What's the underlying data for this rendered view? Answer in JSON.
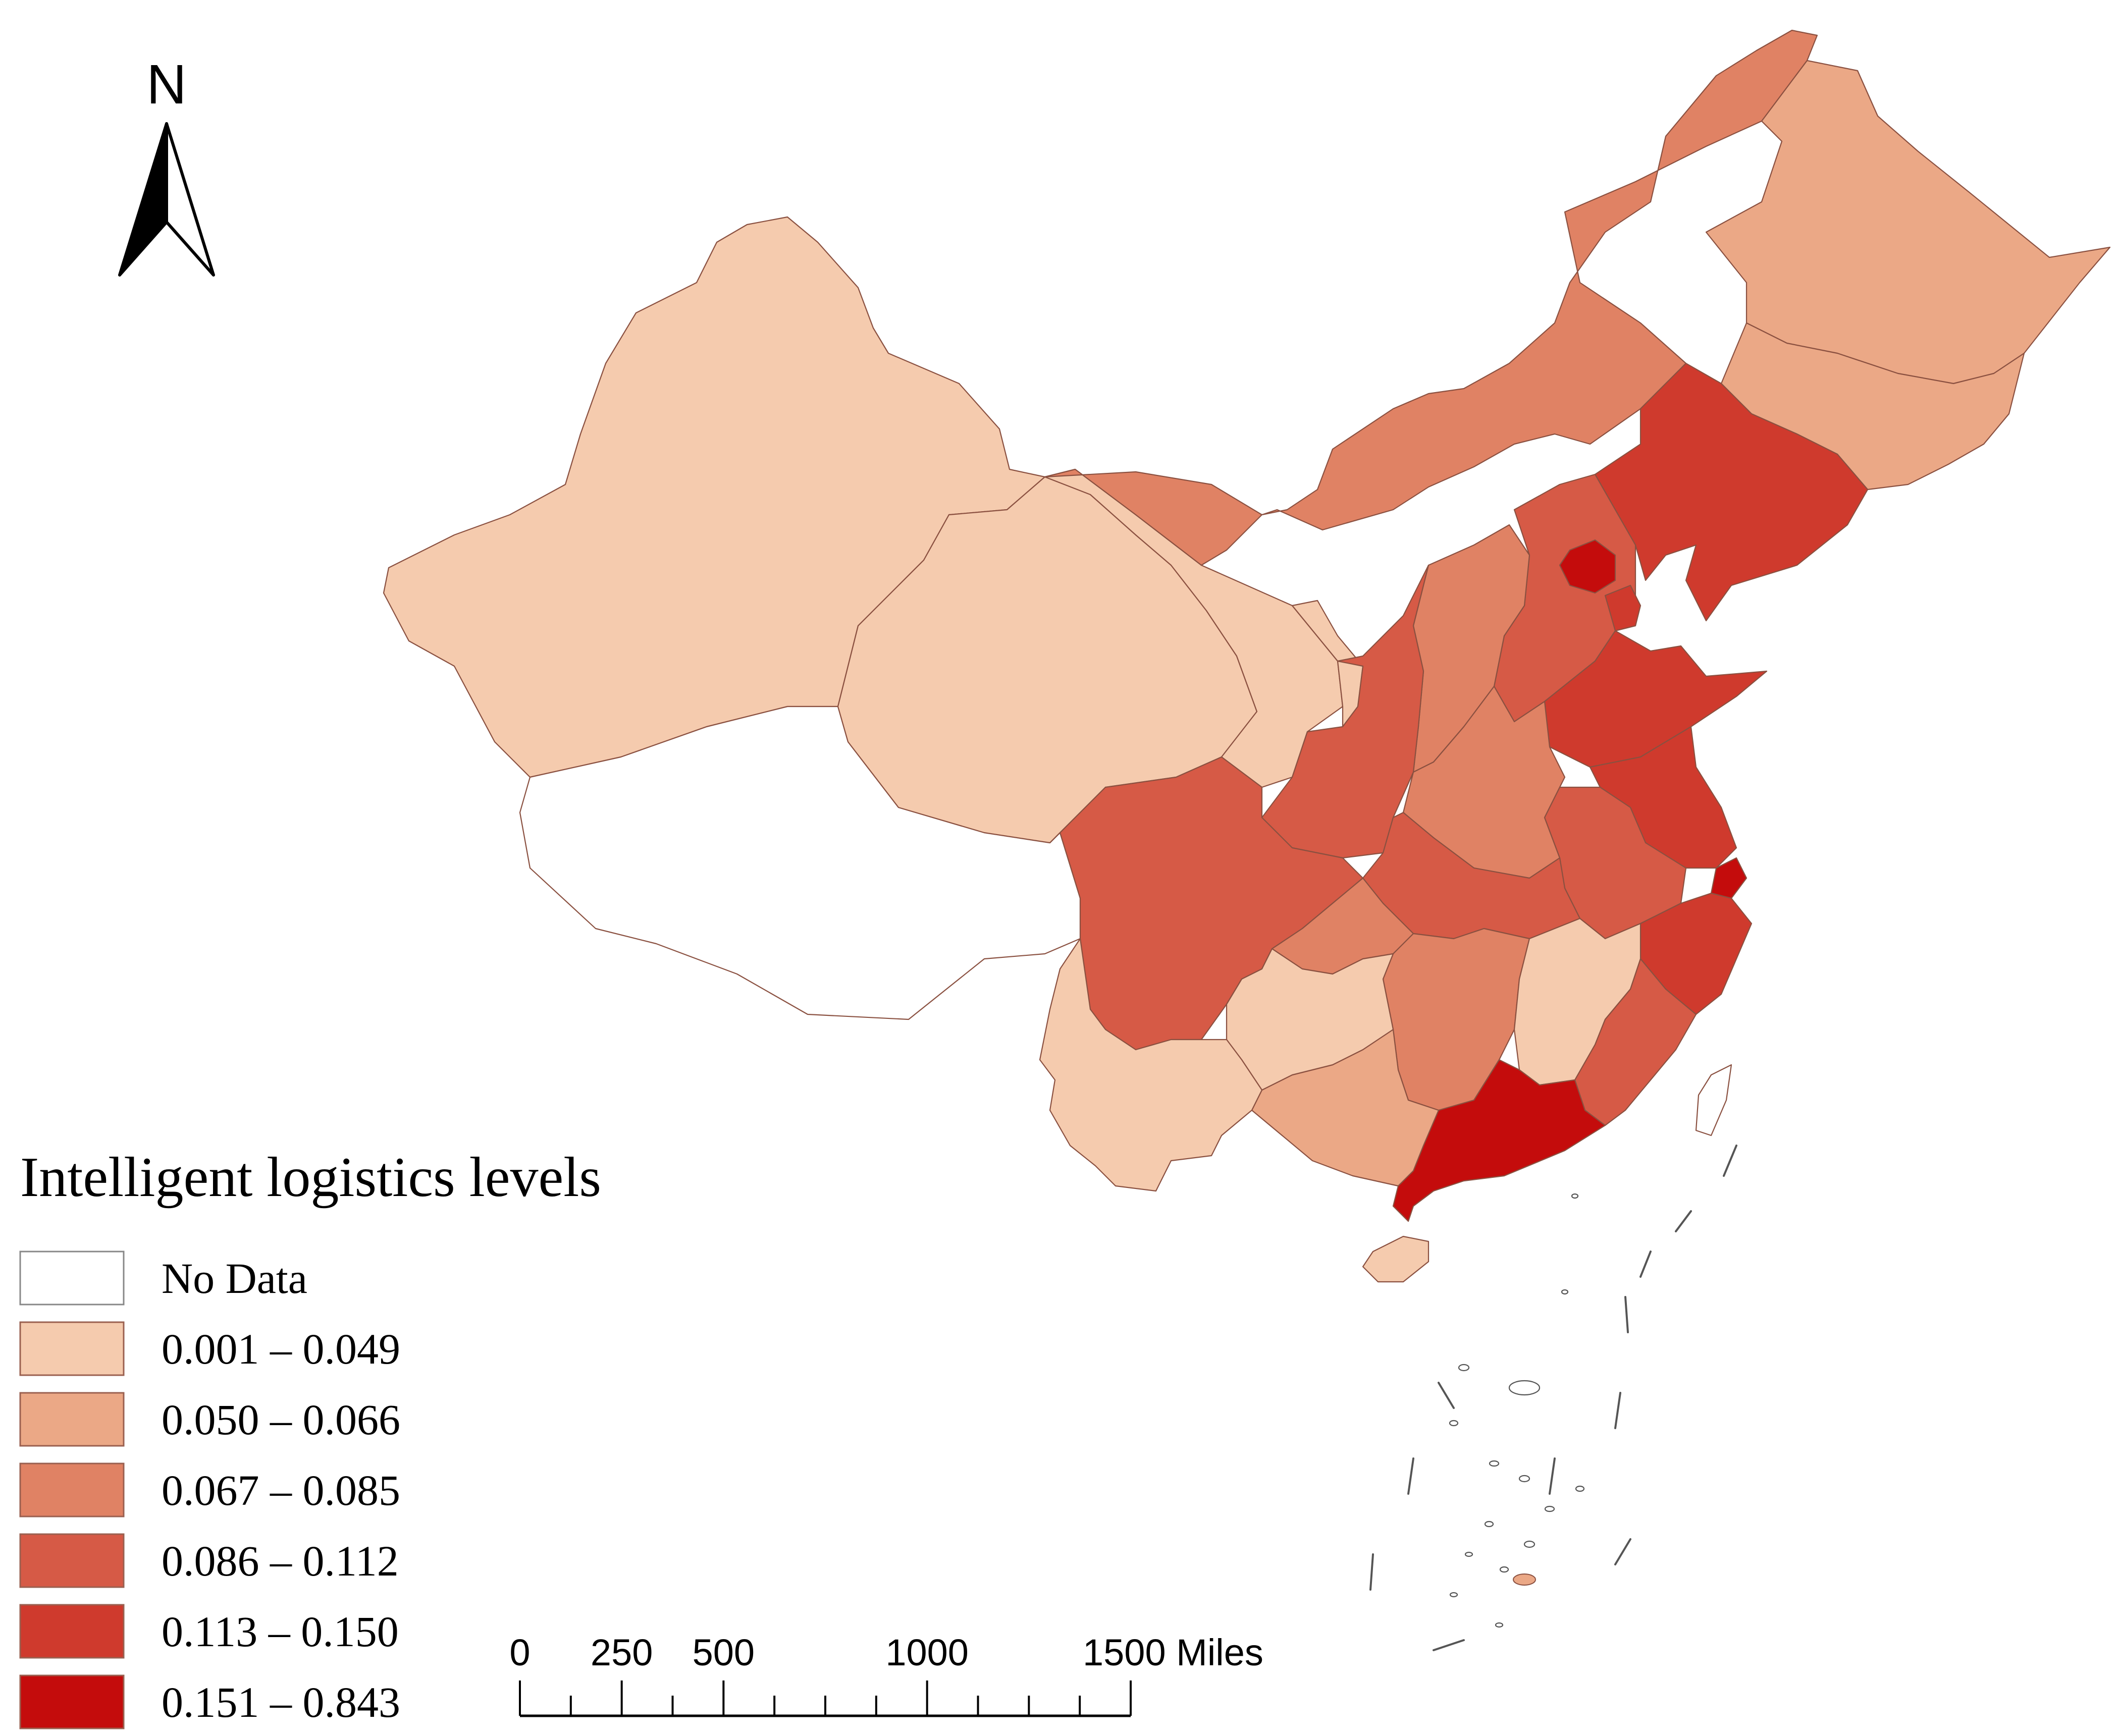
{
  "north_arrow": {
    "label": "N"
  },
  "legend": {
    "title": "Intelligent logistics levels",
    "classes": [
      {
        "label": "No Data",
        "color": "#ffffff"
      },
      {
        "label": "0.001 – 0.049",
        "color": "#f5cbae"
      },
      {
        "label": "0.050 – 0.066",
        "color": "#eba886"
      },
      {
        "label": "0.067 – 0.085",
        "color": "#e08264"
      },
      {
        "label": "0.086 – 0.112",
        "color": "#d65a46"
      },
      {
        "label": "0.113 – 0.150",
        "color": "#cf3a2d"
      },
      {
        "label": "0.151 – 0.843",
        "color": "#c40c0c"
      }
    ]
  },
  "scale_bar": {
    "ticks": [
      "0",
      "250",
      "500",
      "1000",
      "1500 Miles"
    ]
  },
  "regions": [
    {
      "name": "xinjiang",
      "class": 1
    },
    {
      "name": "tibet",
      "class": 0
    },
    {
      "name": "qinghai",
      "class": 1
    },
    {
      "name": "gansu",
      "class": 1
    },
    {
      "name": "ningxia",
      "class": 1
    },
    {
      "name": "inner-mongolia",
      "class": 3
    },
    {
      "name": "heilongjiang",
      "class": 2
    },
    {
      "name": "jilin",
      "class": 2
    },
    {
      "name": "liaoning",
      "class": 5
    },
    {
      "name": "beijing",
      "class": 6
    },
    {
      "name": "tianjin",
      "class": 5
    },
    {
      "name": "hebei",
      "class": 4
    },
    {
      "name": "shanxi",
      "class": 3
    },
    {
      "name": "shaanxi",
      "class": 4
    },
    {
      "name": "shandong",
      "class": 5
    },
    {
      "name": "henan",
      "class": 3
    },
    {
      "name": "jiangsu",
      "class": 5
    },
    {
      "name": "shanghai",
      "class": 6
    },
    {
      "name": "anhui",
      "class": 4
    },
    {
      "name": "zhejiang",
      "class": 5
    },
    {
      "name": "hubei",
      "class": 4
    },
    {
      "name": "sichuan",
      "class": 4
    },
    {
      "name": "chongqing",
      "class": 3
    },
    {
      "name": "hunan",
      "class": 3
    },
    {
      "name": "jiangxi",
      "class": 1
    },
    {
      "name": "fujian",
      "class": 4
    },
    {
      "name": "guangdong",
      "class": 6
    },
    {
      "name": "guangxi",
      "class": 2
    },
    {
      "name": "guizhou",
      "class": 1
    },
    {
      "name": "yunnan",
      "class": 1
    },
    {
      "name": "hainan",
      "class": 1
    },
    {
      "name": "taiwan",
      "class": 0
    }
  ]
}
